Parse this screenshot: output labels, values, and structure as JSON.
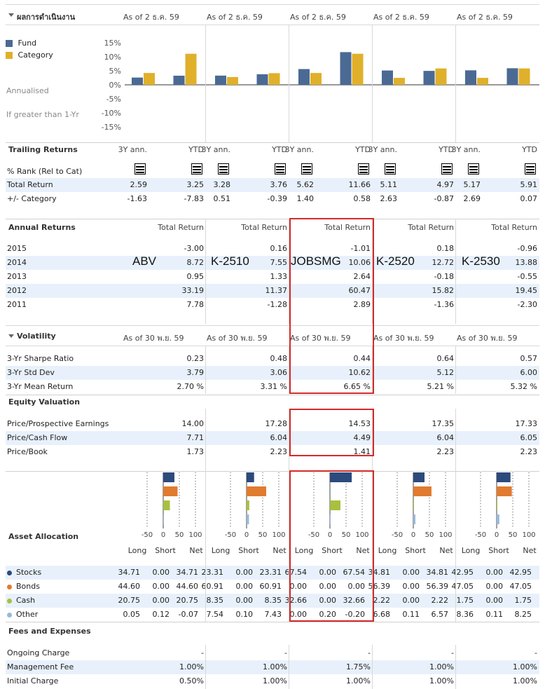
{
  "performance_header": {
    "title": "ผลการดำเนินงาน",
    "as_of": [
      "As of 2 ธ.ค. 59",
      "As of 2 ธ.ค. 59",
      "As of 2 ธ.ค. 59",
      "As of 2 ธ.ค. 59",
      "As of 2 ธ.ค. 59"
    ]
  },
  "chart_data": {
    "type": "bar",
    "categories": [
      "ABV 3Y ann.",
      "ABV YTD",
      "K-2510 3Y ann.",
      "K-2510 YTD",
      "JOBSMG 3Y ann.",
      "JOBSMG YTD",
      "K-2520 3Y ann.",
      "K-2520 YTD",
      "K-2530 3Y ann.",
      "K-2530 YTD"
    ],
    "series": [
      {
        "name": "Fund",
        "color": "#4a6a94",
        "values": [
          2.59,
          3.25,
          3.28,
          3.76,
          5.62,
          11.66,
          5.11,
          4.97,
          5.17,
          5.91
        ]
      },
      {
        "name": "Category",
        "color": "#e0b02a",
        "values": [
          4.22,
          11.08,
          2.77,
          4.15,
          4.22,
          11.08,
          2.48,
          5.84,
          2.48,
          5.84
        ]
      }
    ],
    "yticks": [
      "15%",
      "10%",
      "5%",
      "0%",
      "-5%",
      "-10%",
      "-15%"
    ],
    "ylim": [
      -17,
      17
    ],
    "legend": [
      "Fund",
      "Category"
    ],
    "side_labels": [
      "Annualised",
      "If greater than 1-Yr"
    ]
  },
  "trailing": {
    "title": "Trailing Returns",
    "periods": [
      "3Y ann.",
      "YTD",
      "3Y ann.",
      "YTD",
      "3Y ann.",
      "YTD",
      "3Y ann.",
      "YTD",
      "3Y ann.",
      "YTD"
    ],
    "rank_label": "% Rank (Rel to Cat)",
    "rows": [
      {
        "label": "Total Return",
        "values": [
          "2.59",
          "3.25",
          "3.28",
          "3.76",
          "5.62",
          "11.66",
          "5.11",
          "4.97",
          "5.17",
          "5.91"
        ]
      },
      {
        "label": "+/- Category",
        "values": [
          "-1.63",
          "-7.83",
          "0.51",
          "-0.39",
          "1.40",
          "0.58",
          "2.63",
          "-0.87",
          "2.69",
          "0.07"
        ]
      }
    ]
  },
  "annual": {
    "title": "Annual Returns",
    "col_header": "Total Return",
    "fund_names": [
      "ABV",
      "K-2510",
      "JOBSMG",
      "K-2520",
      "K-2530"
    ],
    "rows": [
      {
        "label": "2015",
        "values": [
          "-3.00",
          "0.16",
          "-1.01",
          "0.18",
          "-0.96"
        ]
      },
      {
        "label": "2014",
        "values": [
          "8.72",
          "7.55",
          "10.06",
          "12.72",
          "13.88"
        ]
      },
      {
        "label": "2013",
        "values": [
          "0.95",
          "1.33",
          "2.64",
          "-0.18",
          "-0.55"
        ]
      },
      {
        "label": "2012",
        "values": [
          "33.19",
          "11.37",
          "60.47",
          "15.82",
          "19.45"
        ]
      },
      {
        "label": "2011",
        "values": [
          "7.78",
          "-1.28",
          "2.89",
          "-1.36",
          "-2.30"
        ]
      }
    ]
  },
  "volatility": {
    "title": "Volatility",
    "as_of": [
      "As of 30 พ.ย. 59",
      "As of 30 พ.ย. 59",
      "As of 30 พ.ย. 59",
      "As of 30 พ.ย. 59",
      "As of 30 พ.ย. 59"
    ],
    "rows": [
      {
        "label": "3-Yr Sharpe Ratio",
        "values": [
          "0.23",
          "0.48",
          "0.44",
          "0.64",
          "0.57"
        ]
      },
      {
        "label": "3-Yr Std Dev",
        "values": [
          "3.79",
          "3.06",
          "10.62",
          "5.12",
          "6.00"
        ]
      },
      {
        "label": "3-Yr Mean Return",
        "values": [
          "2.70 %",
          "3.31 %",
          "6.65 %",
          "5.21 %",
          "5.32 %"
        ]
      }
    ]
  },
  "equity": {
    "title": "Equity Valuation",
    "rows": [
      {
        "label": "Price/Prospective Earnings",
        "values": [
          "14.00",
          "17.28",
          "14.53",
          "17.35",
          "17.33"
        ]
      },
      {
        "label": "Price/Cash Flow",
        "values": [
          "7.71",
          "6.04",
          "4.49",
          "6.04",
          "6.05"
        ]
      },
      {
        "label": "Price/Book",
        "values": [
          "1.73",
          "2.23",
          "1.41",
          "2.23",
          "2.23"
        ]
      }
    ]
  },
  "allocation": {
    "title": "Asset Allocation",
    "axis_ticks": [
      "-50",
      "0",
      "50",
      "100"
    ],
    "col_labels": [
      "Long",
      "Short",
      "Net"
    ],
    "colors": {
      "Stocks": "#2c4a7c",
      "Bonds": "#e07b30",
      "Cash": "#a8c040",
      "Other": "#9ab8d8"
    },
    "rows": [
      {
        "label": "Stocks",
        "color": "#2c4a7c",
        "values": [
          "34.71",
          "0.00",
          "34.71",
          "23.31",
          "0.00",
          "23.31",
          "67.54",
          "0.00",
          "67.54",
          "34.81",
          "0.00",
          "34.81",
          "42.95",
          "0.00",
          "42.95"
        ]
      },
      {
        "label": "Bonds",
        "color": "#e07b30",
        "values": [
          "44.60",
          "0.00",
          "44.60",
          "60.91",
          "0.00",
          "60.91",
          "0.00",
          "0.00",
          "0.00",
          "56.39",
          "0.00",
          "56.39",
          "47.05",
          "0.00",
          "47.05"
        ]
      },
      {
        "label": "Cash",
        "color": "#a8c040",
        "values": [
          "20.75",
          "0.00",
          "20.75",
          "8.35",
          "0.00",
          "8.35",
          "32.66",
          "0.00",
          "32.66",
          "2.22",
          "0.00",
          "2.22",
          "1.75",
          "0.00",
          "1.75"
        ]
      },
      {
        "label": "Other",
        "color": "#9ab8d8",
        "values": [
          "0.05",
          "0.12",
          "-0.07",
          "7.54",
          "0.10",
          "7.43",
          "0.00",
          "0.20",
          "-0.20",
          "6.68",
          "0.11",
          "6.57",
          "8.36",
          "0.11",
          "8.25"
        ]
      }
    ],
    "net": [
      [
        34.71,
        44.6,
        20.75,
        -0.07
      ],
      [
        23.31,
        60.91,
        8.35,
        7.43
      ],
      [
        67.54,
        0.0,
        32.66,
        -0.2
      ],
      [
        34.81,
        56.39,
        2.22,
        6.57
      ],
      [
        42.95,
        47.05,
        1.75,
        8.25
      ]
    ]
  },
  "fees": {
    "title": "Fees and Expenses",
    "rows": [
      {
        "label": "Ongoing Charge",
        "values": [
          "-",
          "-",
          "-",
          "-",
          "-"
        ]
      },
      {
        "label": "Management Fee",
        "values": [
          "1.00%",
          "1.00%",
          "1.75%",
          "1.00%",
          "1.00%"
        ]
      },
      {
        "label": "Initial Charge",
        "values": [
          "0.50%",
          "1.00%",
          "1.00%",
          "1.00%",
          "1.00%"
        ]
      }
    ]
  }
}
